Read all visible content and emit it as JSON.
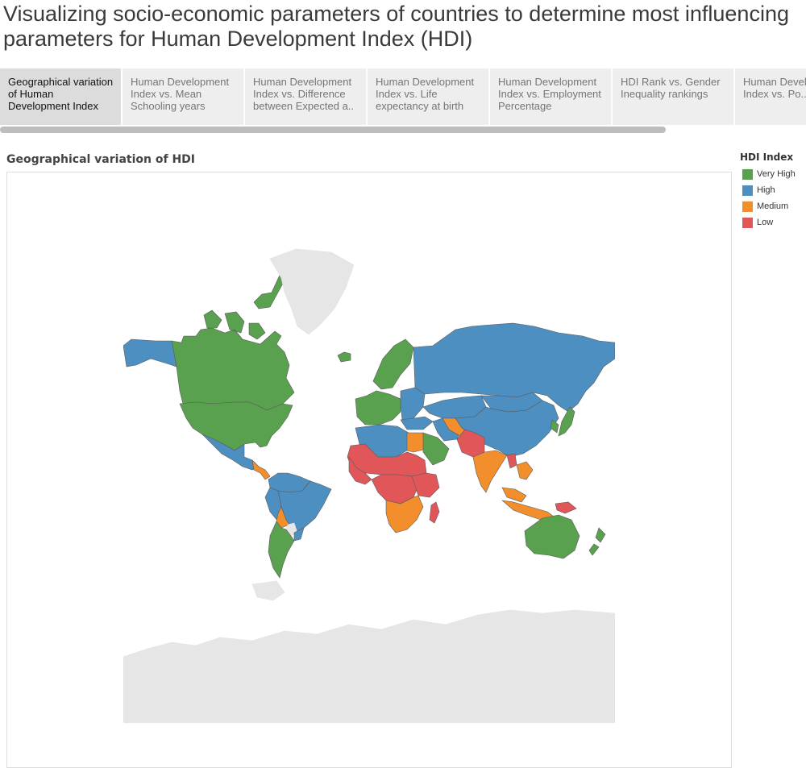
{
  "page": {
    "title": "Visualizing socio-economic parameters of countries to determine most influencing parameters for Human Development Index (HDI)"
  },
  "tabs": [
    {
      "label": "Geographical variation of Human Development Index",
      "active": true
    },
    {
      "label": "Human Development Index vs. Mean Schooling years",
      "active": false
    },
    {
      "label": "Human Development Index vs. Difference between Expected a..",
      "active": false
    },
    {
      "label": "Human Development Index vs. Life expectancy at birth",
      "active": false
    },
    {
      "label": "Human Development Index vs. Employment Percentage",
      "active": false
    },
    {
      "label": "HDI Rank vs. Gender Inequality rankings",
      "active": false
    },
    {
      "label": "Human Development Index vs. Po..",
      "active": false
    }
  ],
  "map": {
    "title": "Geographical variation of HDI",
    "no_data_color": "#e6e6e6",
    "border_color": "#5a5a5a"
  },
  "legend": {
    "title": "HDI Index",
    "items": [
      {
        "label": "Very High",
        "color": "#59a14f"
      },
      {
        "label": "High",
        "color": "#4e8fc2"
      },
      {
        "label": "Medium",
        "color": "#f28e2b"
      },
      {
        "label": "Low",
        "color": "#e15759"
      }
    ]
  },
  "regions": [
    {
      "name": "canada",
      "category": "Very High"
    },
    {
      "name": "greenland",
      "category": "No data"
    },
    {
      "name": "united-states",
      "category": "Very High"
    },
    {
      "name": "alaska",
      "category": "High"
    },
    {
      "name": "mexico",
      "category": "High"
    },
    {
      "name": "central-america",
      "category": "Medium"
    },
    {
      "name": "colombia-venezuela",
      "category": "High"
    },
    {
      "name": "brazil",
      "category": "High"
    },
    {
      "name": "peru",
      "category": "High"
    },
    {
      "name": "bolivia",
      "category": "Medium"
    },
    {
      "name": "paraguay",
      "category": "No data"
    },
    {
      "name": "argentina-chile",
      "category": "Very High"
    },
    {
      "name": "uruguay",
      "category": "High"
    },
    {
      "name": "iceland",
      "category": "Very High"
    },
    {
      "name": "scandinavia",
      "category": "Very High"
    },
    {
      "name": "western-europe",
      "category": "Very High"
    },
    {
      "name": "eastern-europe",
      "category": "High"
    },
    {
      "name": "russia",
      "category": "High"
    },
    {
      "name": "kazakhstan",
      "category": "High"
    },
    {
      "name": "china",
      "category": "High"
    },
    {
      "name": "mongolia",
      "category": "High"
    },
    {
      "name": "turkey",
      "category": "High"
    },
    {
      "name": "north-africa",
      "category": "High"
    },
    {
      "name": "egypt",
      "category": "Medium"
    },
    {
      "name": "saudi-arabia",
      "category": "Very High"
    },
    {
      "name": "iran",
      "category": "High"
    },
    {
      "name": "central-asia",
      "category": "Medium"
    },
    {
      "name": "afghanistan-pakistan",
      "category": "Low"
    },
    {
      "name": "india",
      "category": "Medium"
    },
    {
      "name": "myanmar",
      "category": "Low"
    },
    {
      "name": "southeast-asia",
      "category": "Medium"
    },
    {
      "name": "sahel",
      "category": "Low"
    },
    {
      "name": "west-africa",
      "category": "Low"
    },
    {
      "name": "central-africa",
      "category": "Low"
    },
    {
      "name": "east-africa",
      "category": "Low"
    },
    {
      "name": "southern-africa",
      "category": "Medium"
    },
    {
      "name": "madagascar",
      "category": "Low"
    },
    {
      "name": "japan",
      "category": "Very High"
    },
    {
      "name": "korea",
      "category": "Very High"
    },
    {
      "name": "indonesia",
      "category": "Medium"
    },
    {
      "name": "papua-new-guinea",
      "category": "Low"
    },
    {
      "name": "australia",
      "category": "Very High"
    },
    {
      "name": "new-zealand",
      "category": "Very High"
    },
    {
      "name": "antarctica",
      "category": "No data"
    }
  ]
}
